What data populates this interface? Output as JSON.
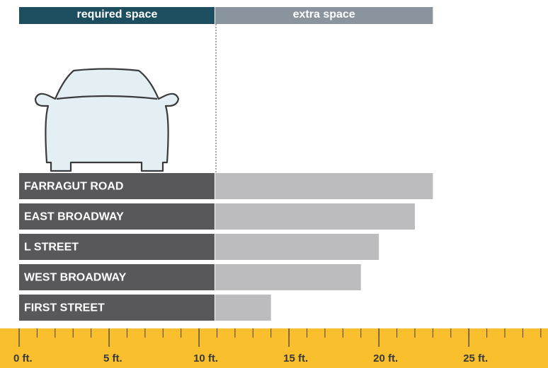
{
  "chart_data": {
    "type": "stacked-bar-horizontal",
    "categories": [
      "FARRAGUT ROAD",
      "EAST BROADWAY",
      "L STREET",
      "WEST BROADWAY",
      "FIRST STREET"
    ],
    "series": [
      {
        "name": "required space",
        "color": "#58585a",
        "header_color": "#1d4e5f",
        "values": [
          10.9,
          10.9,
          10.9,
          10.9,
          10.9
        ]
      },
      {
        "name": "extra space",
        "color": "#bcbcbe",
        "header_color": "#8a949e",
        "values": [
          12.1,
          11.1,
          9.1,
          8.1,
          3.1
        ]
      }
    ],
    "xlim": [
      0,
      29.4
    ],
    "xticks": [
      {
        "value": 0,
        "label": "0 ft."
      },
      {
        "value": 5,
        "label": "5 ft."
      },
      {
        "value": 10,
        "label": "10 ft."
      },
      {
        "value": 15,
        "label": "15 ft."
      },
      {
        "value": 20,
        "label": "20 ft."
      },
      {
        "value": 25,
        "label": "25 ft."
      }
    ],
    "xminorticks": [
      0,
      1,
      2,
      3,
      4,
      5,
      6,
      7,
      8,
      9,
      10,
      11,
      12,
      13,
      14,
      15,
      16,
      17,
      18,
      19,
      20,
      21,
      22,
      23,
      24,
      25,
      26,
      27,
      28,
      29
    ],
    "axis_color": "#f9bf2c"
  }
}
